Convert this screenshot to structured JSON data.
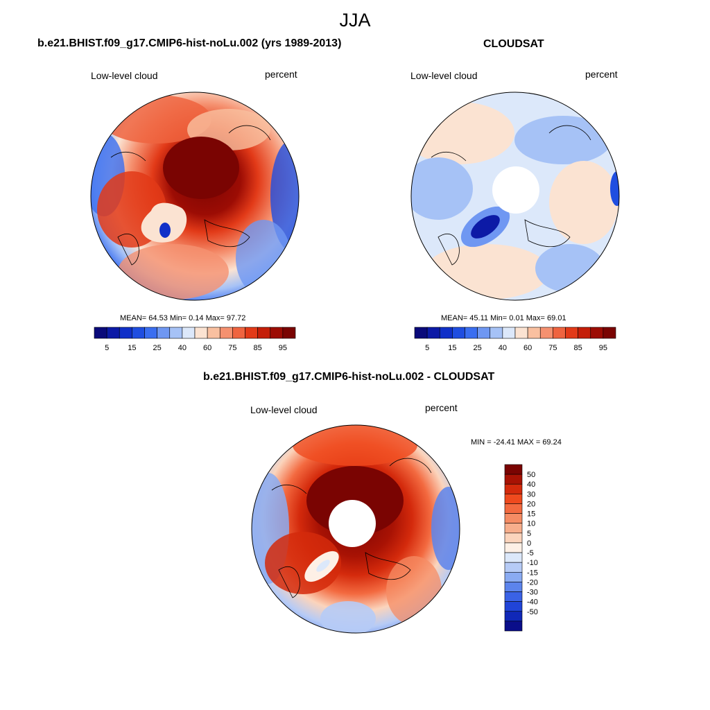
{
  "season": "JJA",
  "units": "percent",
  "panels": {
    "model": {
      "title": "b.e21.BHIST.f09_g17.CMIP6-hist-noLu.002 (yrs 1989-2013)",
      "variable": "Low-level cloud",
      "units": "percent",
      "stats": {
        "mean_label": "MEAN=",
        "mean": "64.53",
        "min_label": "Min=",
        "min": "0.14",
        "max_label": "Max=",
        "max": "97.72"
      }
    },
    "obs": {
      "title": "CLOUDSAT",
      "variable": "Low-level cloud",
      "units": "percent",
      "stats": {
        "mean_label": "MEAN=",
        "mean": "45.11",
        "min_label": "Min=",
        "min": "0.01",
        "max_label": "Max=",
        "max": "69.01"
      }
    },
    "diff": {
      "title": "b.e21.BHIST.f09_g17.CMIP6-hist-noLu.002 - CLOUDSAT",
      "variable": "Low-level cloud",
      "units": "percent",
      "minmax": "MIN = -24.41 MAX =  69.24"
    }
  },
  "abs_colorbar": {
    "colors": [
      "#0a0a7a",
      "#0c1aa6",
      "#1030c8",
      "#1f4ee0",
      "#3a6ef0",
      "#6f97f2",
      "#a6c2f6",
      "#dce8fa",
      "#fbe3d2",
      "#f9c0a0",
      "#f59170",
      "#ef6440",
      "#e23a18",
      "#c41e08",
      "#9c0c04",
      "#7a0402"
    ],
    "tick_labels": [
      "5",
      "15",
      "25",
      "40",
      "60",
      "75",
      "85",
      "95"
    ]
  },
  "diff_colorbar": {
    "colors": [
      "#7a0402",
      "#a81204",
      "#d42a0c",
      "#ef4a1e",
      "#f36a40",
      "#f58c64",
      "#f7ae8c",
      "#fbd4bc",
      "#fdf0e6",
      "#dce8fa",
      "#b6cbf6",
      "#8aabf2",
      "#5c84ec",
      "#3a62e6",
      "#2044d8",
      "#1028b8",
      "#0a0e8a"
    ],
    "tick_labels": [
      "50",
      "40",
      "30",
      "20",
      "15",
      "10",
      "5",
      "0",
      "-5",
      "-10",
      "-15",
      "-20",
      "-30",
      "-40",
      "-50"
    ]
  },
  "chart_data": [
    {
      "type": "heatmap",
      "title": "b.e21.BHIST.f09_g17.CMIP6-hist-noLu.002 (yrs 1989-2013)",
      "projection": "north-polar-stereographic",
      "variable": "Low-level cloud",
      "units": "percent",
      "mean": 64.53,
      "min": 0.14,
      "max": 97.72,
      "levels": [
        5,
        10,
        15,
        20,
        25,
        30,
        40,
        50,
        60,
        65,
        75,
        80,
        85,
        90,
        95
      ]
    },
    {
      "type": "heatmap",
      "title": "CLOUDSAT",
      "projection": "north-polar-stereographic",
      "variable": "Low-level cloud",
      "units": "percent",
      "mean": 45.11,
      "min": 0.01,
      "max": 69.01,
      "levels": [
        5,
        10,
        15,
        20,
        25,
        30,
        40,
        50,
        60,
        65,
        75,
        80,
        85,
        90,
        95
      ]
    },
    {
      "type": "heatmap",
      "title": "b.e21.BHIST.f09_g17.CMIP6-hist-noLu.002 - CLOUDSAT",
      "projection": "north-polar-stereographic",
      "variable": "Low-level cloud",
      "units": "percent",
      "min": -24.41,
      "max": 69.24,
      "levels": [
        -50,
        -40,
        -30,
        -20,
        -15,
        -10,
        -5,
        0,
        5,
        10,
        15,
        20,
        30,
        40,
        50
      ]
    }
  ]
}
